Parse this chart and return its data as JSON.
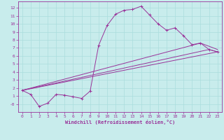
{
  "xlabel": "Windchill (Refroidissement éolien,°C)",
  "background_color": "#c8ecec",
  "line_color": "#993399",
  "grid_color": "#aadddd",
  "xlim": [
    -0.5,
    23.5
  ],
  "ylim": [
    -1.0,
    12.8
  ],
  "xticks": [
    0,
    1,
    2,
    3,
    4,
    5,
    6,
    7,
    8,
    9,
    10,
    11,
    12,
    13,
    14,
    15,
    16,
    17,
    18,
    19,
    20,
    21,
    22,
    23
  ],
  "yticks": [
    0,
    1,
    2,
    3,
    4,
    5,
    6,
    7,
    8,
    9,
    10,
    11,
    12
  ],
  "ytick_labels": [
    "-0",
    "1",
    "2",
    "3",
    "4",
    "5",
    "6",
    "7",
    "8",
    "9",
    "10",
    "11",
    "12"
  ],
  "series": [
    {
      "x": [
        0,
        1,
        2,
        3,
        4,
        5,
        6,
        7,
        8,
        9,
        10,
        11,
        12,
        13,
        14,
        15,
        16,
        17,
        18,
        19,
        20,
        21,
        22,
        23
      ],
      "y": [
        1.7,
        1.2,
        -0.3,
        0.1,
        1.2,
        1.1,
        0.9,
        0.7,
        1.6,
        7.3,
        9.8,
        11.2,
        11.7,
        11.8,
        12.2,
        11.1,
        10.0,
        9.2,
        9.5,
        8.5,
        7.4,
        7.6,
        6.8,
        6.5
      ],
      "has_marker": true
    },
    {
      "x": [
        0,
        23
      ],
      "y": [
        1.7,
        6.5
      ],
      "has_marker": false
    },
    {
      "x": [
        0,
        21,
        23
      ],
      "y": [
        1.7,
        7.6,
        6.8
      ],
      "has_marker": false
    },
    {
      "x": [
        0,
        22,
        23
      ],
      "y": [
        1.7,
        6.8,
        6.5
      ],
      "has_marker": false
    }
  ]
}
